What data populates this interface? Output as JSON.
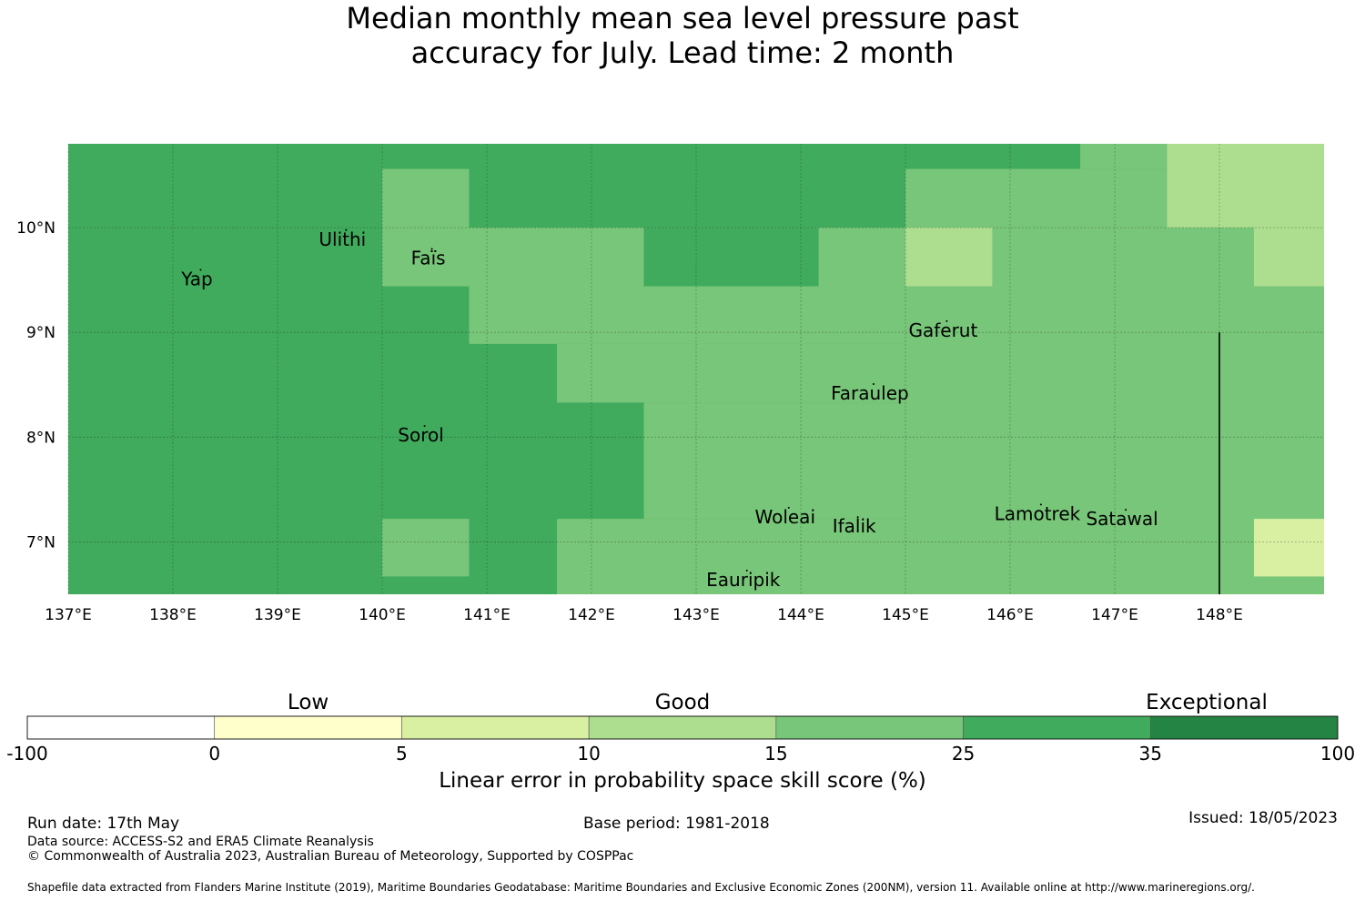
{
  "title": {
    "line1": "Median monthly mean sea level pressure past",
    "line2": "accuracy for July. Lead time: 2 month"
  },
  "map": {
    "lon_range": [
      137,
      149
    ],
    "lat_range": [
      6.5,
      10.8
    ],
    "lon_ticks": [
      137,
      138,
      139,
      140,
      141,
      142,
      143,
      144,
      145,
      146,
      147,
      148
    ],
    "lon_tick_labels": [
      "137°E",
      "138°E",
      "139°E",
      "140°E",
      "141°E",
      "142°E",
      "143°E",
      "144°E",
      "145°E",
      "146°E",
      "147°E",
      "148°E"
    ],
    "lat_ticks": [
      7,
      8,
      9,
      10
    ],
    "lat_tick_labels": [
      "7°N",
      "8°N",
      "9°N",
      "10°N"
    ],
    "grid": true,
    "boundary_line": {
      "lon": 148,
      "lat_from": 6.5,
      "lat_to": 9.0
    },
    "cells": [
      {
        "lon0": 137.0,
        "lon1": 149.0,
        "lat0": 6.5,
        "lat1": 10.8,
        "cls": 5
      },
      {
        "lon0": 140.0,
        "lon1": 140.83,
        "lat0": 9.44,
        "lat1": 10.56,
        "cls": 4
      },
      {
        "lon0": 140.83,
        "lon1": 145.0,
        "lat0": 8.89,
        "lat1": 10.0,
        "cls": 4
      },
      {
        "lon0": 145.0,
        "lon1": 149.0,
        "lat0": 6.5,
        "lat1": 10.56,
        "cls": 4
      },
      {
        "lon0": 146.67,
        "lon1": 147.5,
        "lat0": 10.56,
        "lat1": 10.8,
        "cls": 4
      },
      {
        "lon0": 141.67,
        "lon1": 145.0,
        "lat0": 8.33,
        "lat1": 8.89,
        "cls": 4
      },
      {
        "lon0": 142.5,
        "lon1": 145.0,
        "lat0": 7.22,
        "lat1": 8.33,
        "cls": 4
      },
      {
        "lon0": 141.67,
        "lon1": 145.0,
        "lat0": 6.5,
        "lat1": 7.22,
        "cls": 4
      },
      {
        "lon0": 140.0,
        "lon1": 140.83,
        "lat0": 6.67,
        "lat1": 7.22,
        "cls": 4
      },
      {
        "lon0": 142.5,
        "lon1": 144.17,
        "lat0": 9.44,
        "lat1": 10.0,
        "cls": 5
      },
      {
        "lon0": 147.5,
        "lon1": 149.0,
        "lat0": 10.0,
        "lat1": 10.8,
        "cls": 3
      },
      {
        "lon0": 145.0,
        "lon1": 145.83,
        "lat0": 9.44,
        "lat1": 10.0,
        "cls": 3
      },
      {
        "lon0": 148.33,
        "lon1": 149.0,
        "lat0": 9.44,
        "lat1": 10.0,
        "cls": 3
      },
      {
        "lon0": 148.33,
        "lon1": 149.0,
        "lat0": 6.67,
        "lat1": 7.22,
        "cls": 2
      }
    ],
    "places": [
      {
        "name": "Yap",
        "lon": 138.23,
        "lat": 9.51
      },
      {
        "name": "Ulithi",
        "lon": 139.62,
        "lat": 9.89
      },
      {
        "name": "Faïs",
        "lon": 140.44,
        "lat": 9.71
      },
      {
        "name": "Gaferut",
        "lon": 145.36,
        "lat": 9.02
      },
      {
        "name": "Faraulep",
        "lon": 144.66,
        "lat": 8.42
      },
      {
        "name": "Sorol",
        "lon": 140.37,
        "lat": 8.02
      },
      {
        "name": "Woleai",
        "lon": 143.85,
        "lat": 7.24
      },
      {
        "name": "Ifalik",
        "lon": 144.51,
        "lat": 7.15
      },
      {
        "name": "Lamotrek",
        "lon": 146.26,
        "lat": 7.27
      },
      {
        "name": "Satawal",
        "lon": 147.07,
        "lat": 7.22
      },
      {
        "name": "Eauripik",
        "lon": 143.45,
        "lat": 6.64
      }
    ]
  },
  "legend": {
    "colors": [
      "#ffffff",
      "#ffffcc",
      "#d9f0a3",
      "#addd8e",
      "#78c679",
      "#41ab5d",
      "#238443"
    ],
    "bounds": [
      "-100",
      "0",
      "5",
      "10",
      "15",
      "25",
      "35",
      "100"
    ],
    "categories": [
      {
        "label": "Low",
        "pos": 1.5
      },
      {
        "label": "Good",
        "pos": 3.5
      },
      {
        "label": "Exceptional",
        "pos": 6.3
      }
    ],
    "label": "Linear error in probability space skill score (%)"
  },
  "footer": {
    "run_date": "Run date: 17th May",
    "base_period": "Base period: 1981-2018",
    "issued": "Issued: 18/05/2023",
    "data_source": "Data source: ACCESS-S2 and ERA5 Climate Reanalysis",
    "copyright": "© Commonwealth of Australia 2023, Australian Bureau of Meteorology, Supported by COSPPac",
    "shapefile": "Shapefile data extracted from Flanders Marine Institute (2019), Maritime Boundaries Geodatabase: Maritime Boundaries and Exclusive Economic Zones (200NM), version 11. Available online at http://www.marineregions.org/."
  }
}
